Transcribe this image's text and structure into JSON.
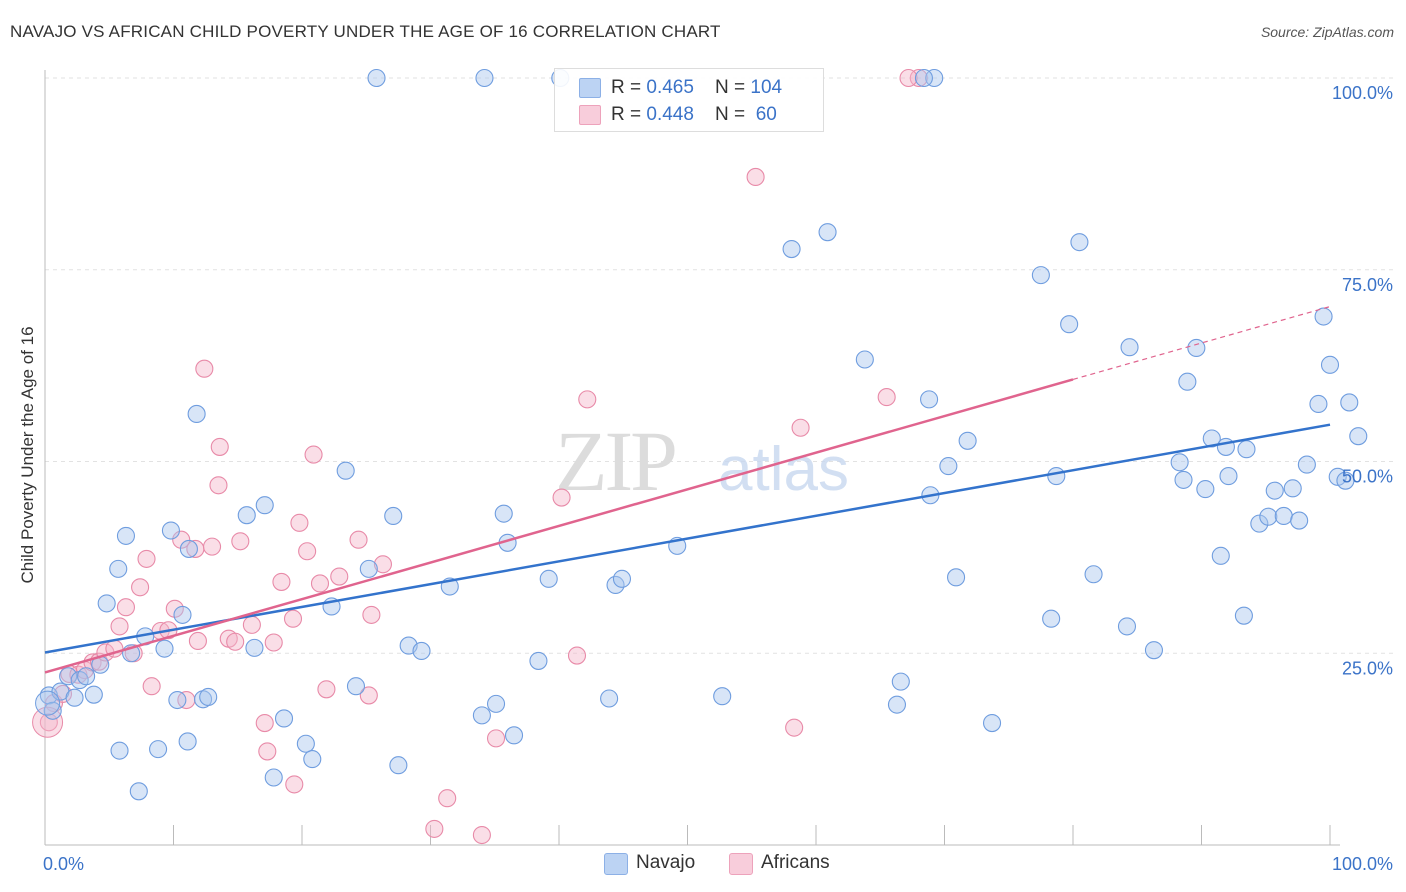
{
  "title": "NAVAJO VS AFRICAN CHILD POVERTY UNDER THE AGE OF 16 CORRELATION CHART",
  "source": "Source: ZipAtlas.com",
  "watermark": "ZIPatlas",
  "legend": {
    "navajo": {
      "r_label": "R = ",
      "r_value": "0.465",
      "n_label": "N = ",
      "n_value": "104"
    },
    "africans": {
      "r_label": "R = ",
      "r_value": "0.448",
      "n_label": "N = ",
      "n_value": " 60"
    }
  },
  "chart_data": {
    "type": "scatter",
    "title": "NAVAJO VS AFRICAN CHILD POVERTY UNDER THE AGE OF 16 CORRELATION CHART",
    "xlabel": "",
    "ylabel": "Child Poverty Under the Age of 16",
    "xlim": [
      0,
      100
    ],
    "ylim": [
      0,
      100
    ],
    "x_ticks": [
      "0.0%",
      "100.0%"
    ],
    "y_ticks": [
      "25.0%",
      "50.0%",
      "75.0%",
      "100.0%"
    ],
    "grid": true,
    "legend_position": "top-center",
    "colors": {
      "navajo": "#a9c6ee",
      "navajo_line": "#3373cc",
      "africans": "#f4b6c9",
      "africans_line": "#e0648e",
      "axis_text": "#3b73c8"
    },
    "series": [
      {
        "name": "Navajo",
        "color": "#a9c6ee",
        "trend": {
          "x": [
            0,
            100
          ],
          "y": [
            25.1,
            54.8
          ]
        },
        "points": [
          [
            0.3,
            19.5
          ],
          [
            0.6,
            17.5
          ],
          [
            1.2,
            20
          ],
          [
            1.8,
            22
          ],
          [
            2.3,
            19.2
          ],
          [
            2.7,
            21.5
          ],
          [
            3.2,
            22
          ],
          [
            3.8,
            19.6
          ],
          [
            4.3,
            23.5
          ],
          [
            4.8,
            31.5
          ],
          [
            5.7,
            36
          ],
          [
            5.8,
            12.3
          ],
          [
            6.3,
            40.3
          ],
          [
            6.7,
            25
          ],
          [
            7.3,
            7
          ],
          [
            7.8,
            27.2
          ],
          [
            8.8,
            12.5
          ],
          [
            9.3,
            25.6
          ],
          [
            9.8,
            41
          ],
          [
            10.3,
            18.9
          ],
          [
            10.7,
            30
          ],
          [
            11.1,
            13.5
          ],
          [
            11.2,
            38.6
          ],
          [
            11.8,
            56.2
          ],
          [
            12.3,
            19
          ],
          [
            12.7,
            19.3
          ],
          [
            15.7,
            43
          ],
          [
            16.3,
            25.7
          ],
          [
            17.1,
            44.3
          ],
          [
            17.8,
            8.8
          ],
          [
            18.6,
            16.5
          ],
          [
            20.3,
            13.2
          ],
          [
            20.8,
            11.2
          ],
          [
            22.3,
            31.1
          ],
          [
            23.4,
            48.8
          ],
          [
            24.2,
            20.7
          ],
          [
            25.2,
            36
          ],
          [
            27.1,
            42.9
          ],
          [
            27.5,
            10.4
          ],
          [
            28.3,
            26
          ],
          [
            29.3,
            25.3
          ],
          [
            31.5,
            33.7
          ],
          [
            34.0,
            16.9
          ],
          [
            35.1,
            18.4
          ],
          [
            35.7,
            43.2
          ],
          [
            36.0,
            39.4
          ],
          [
            36.5,
            14.3
          ],
          [
            38.4,
            24
          ],
          [
            39.2,
            34.7
          ],
          [
            43.9,
            19.1
          ],
          [
            44.4,
            33.9
          ],
          [
            44.9,
            34.7
          ],
          [
            49.2,
            39
          ],
          [
            52.7,
            19.4
          ],
          [
            58.1,
            77.7
          ],
          [
            60.9,
            79.9
          ],
          [
            63.8,
            63.3
          ],
          [
            66.3,
            18.3
          ],
          [
            66.6,
            21.3
          ],
          [
            68.8,
            58.1
          ],
          [
            68.9,
            45.6
          ],
          [
            70.3,
            49.4
          ],
          [
            70.9,
            34.9
          ],
          [
            71.8,
            52.7
          ],
          [
            73.7,
            15.9
          ],
          [
            77.5,
            74.3
          ],
          [
            78.3,
            29.5
          ],
          [
            78.7,
            48.1
          ],
          [
            79.7,
            67.9
          ],
          [
            80.5,
            78.6
          ],
          [
            81.6,
            35.3
          ],
          [
            84.2,
            28.5
          ],
          [
            84.4,
            64.9
          ],
          [
            86.3,
            25.4
          ],
          [
            88.3,
            49.9
          ],
          [
            88.6,
            47.6
          ],
          [
            88.9,
            60.4
          ],
          [
            89.6,
            64.8
          ],
          [
            90.3,
            46.4
          ],
          [
            90.8,
            53
          ],
          [
            91.5,
            37.7
          ],
          [
            91.9,
            51.9
          ],
          [
            92.1,
            48.1
          ],
          [
            93.3,
            29.9
          ],
          [
            93.5,
            51.6
          ],
          [
            94.5,
            41.9
          ],
          [
            95.2,
            42.8
          ],
          [
            95.7,
            46.2
          ],
          [
            96.4,
            42.9
          ],
          [
            97.1,
            46.5
          ],
          [
            97.6,
            42.3
          ],
          [
            98.2,
            49.6
          ],
          [
            99.1,
            57.5
          ],
          [
            99.5,
            68.9
          ],
          [
            100.0,
            62.6
          ],
          [
            100.6,
            48
          ],
          [
            101.2,
            47.5
          ],
          [
            101.5,
            57.7
          ],
          [
            102.2,
            53.3
          ],
          [
            25.8,
            100
          ],
          [
            34.2,
            100
          ],
          [
            69.2,
            100
          ],
          [
            40.1,
            100
          ],
          [
            68.4,
            100
          ]
        ]
      },
      {
        "name": "Africans",
        "color": "#f4b6c9",
        "trend": {
          "x": [
            0,
            80
          ],
          "y": [
            22.5,
            60.7
          ],
          "dashed_to": {
            "x": 100,
            "y": 70.2
          }
        },
        "points": [
          [
            0.3,
            16
          ],
          [
            0.7,
            18.5
          ],
          [
            1.4,
            19.7
          ],
          [
            1.9,
            22.3
          ],
          [
            2.6,
            22.2
          ],
          [
            3.1,
            22.8
          ],
          [
            3.7,
            23.8
          ],
          [
            4.2,
            23.9
          ],
          [
            4.7,
            25.1
          ],
          [
            5.4,
            25.6
          ],
          [
            5.8,
            28.5
          ],
          [
            6.3,
            31
          ],
          [
            6.9,
            25
          ],
          [
            7.4,
            33.6
          ],
          [
            7.9,
            37.3
          ],
          [
            8.3,
            20.7
          ],
          [
            9.0,
            27.9
          ],
          [
            9.6,
            28
          ],
          [
            10.1,
            30.8
          ],
          [
            10.6,
            39.8
          ],
          [
            11.0,
            18.9
          ],
          [
            11.7,
            38.6
          ],
          [
            11.9,
            26.6
          ],
          [
            12.4,
            62.1
          ],
          [
            13.0,
            38.9
          ],
          [
            13.5,
            46.9
          ],
          [
            13.6,
            51.9
          ],
          [
            14.3,
            26.9
          ],
          [
            14.8,
            26.5
          ],
          [
            15.2,
            39.6
          ],
          [
            16.1,
            28.7
          ],
          [
            17.1,
            15.9
          ],
          [
            17.3,
            12.2
          ],
          [
            17.8,
            26.4
          ],
          [
            18.4,
            34.3
          ],
          [
            19.3,
            29.5
          ],
          [
            19.4,
            7.9
          ],
          [
            19.8,
            42
          ],
          [
            20.4,
            38.3
          ],
          [
            20.9,
            50.9
          ],
          [
            21.4,
            34.1
          ],
          [
            21.9,
            20.3
          ],
          [
            22.9,
            35
          ],
          [
            24.4,
            39.8
          ],
          [
            25.2,
            19.5
          ],
          [
            25.4,
            30
          ],
          [
            26.3,
            36.6
          ],
          [
            30.3,
            2.1
          ],
          [
            31.3,
            6.1
          ],
          [
            34.0,
            1.3
          ],
          [
            35.1,
            13.9
          ],
          [
            40.2,
            45.3
          ],
          [
            41.4,
            24.7
          ],
          [
            42.2,
            58.1
          ],
          [
            55.3,
            87.1
          ],
          [
            58.3,
            15.3
          ],
          [
            58.8,
            54.4
          ],
          [
            65.5,
            58.4
          ],
          [
            68.0,
            100
          ],
          [
            67.2,
            100
          ]
        ]
      }
    ]
  }
}
